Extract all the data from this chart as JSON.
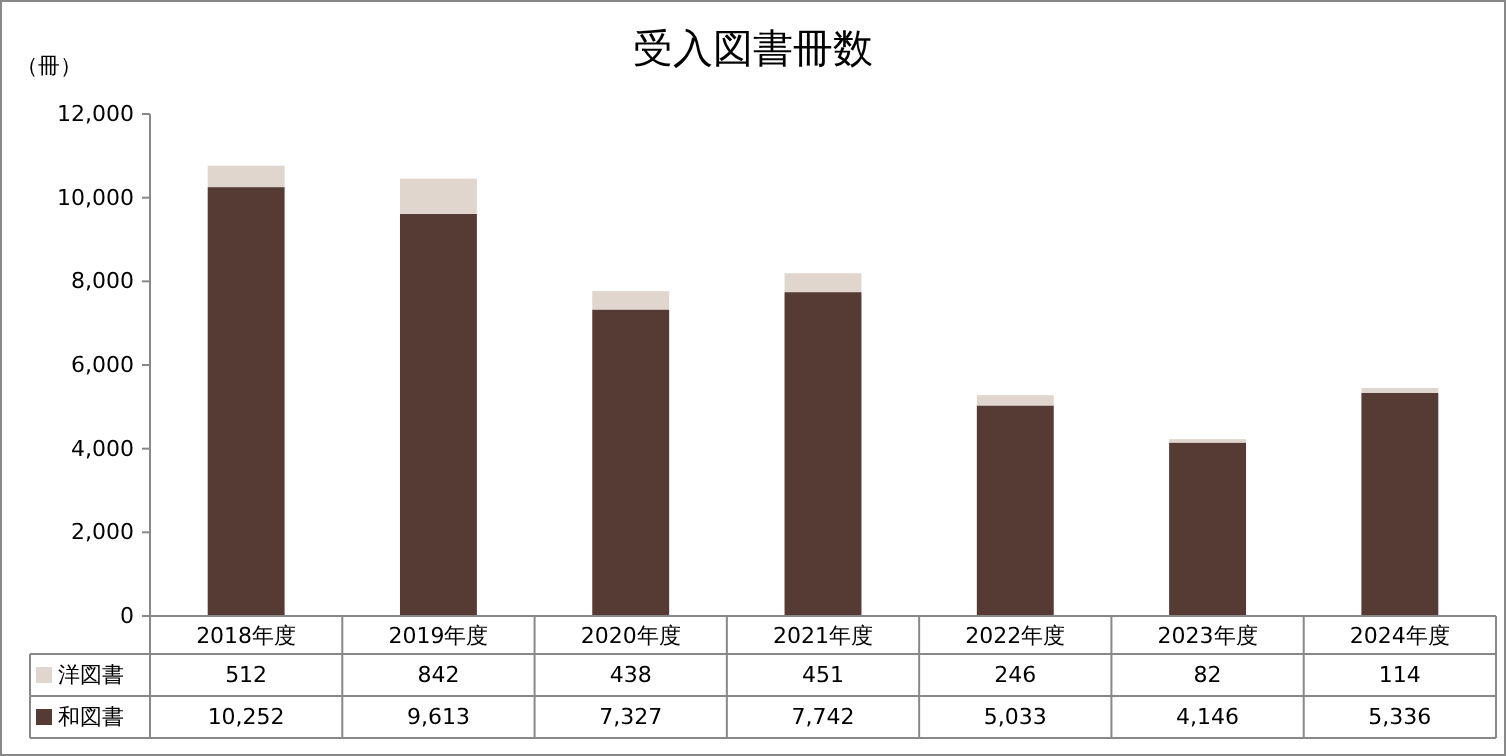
{
  "chart_data": {
    "type": "bar",
    "title": "受入図書冊数",
    "ylabel": "（冊）",
    "categories": [
      "2018年度",
      "2019年度",
      "2020年度",
      "2021年度",
      "2022年度",
      "2023年度",
      "2024年度"
    ],
    "stacked": true,
    "legend": "bottom",
    "ylim": [
      0,
      12000
    ],
    "yticks": [
      0,
      {
        "value": 2000,
        "label": "2,000"
      },
      {
        "value": 4000,
        "label": "4,000"
      },
      {
        "value": 6000,
        "label": "6,000"
      },
      {
        "value": 8000,
        "label": "8,000"
      },
      {
        "value": 10000,
        "label": "10,000"
      },
      {
        "value": 12000,
        "label": "12,000"
      }
    ],
    "series": [
      {
        "name": "和図書",
        "color": "#563a34",
        "values": [
          10252,
          9613,
          7327,
          7742,
          5033,
          4146,
          5336
        ],
        "value_labels": [
          "10,252",
          "9,613",
          "7,327",
          "7,742",
          "5,033",
          "4,146",
          "5,336"
        ]
      },
      {
        "name": "洋図書",
        "color": "#e0d6cd",
        "values": [
          512,
          842,
          438,
          451,
          246,
          82,
          114
        ],
        "value_labels": [
          "512",
          "842",
          "438",
          "451",
          "246",
          "82",
          "114"
        ]
      }
    ]
  }
}
